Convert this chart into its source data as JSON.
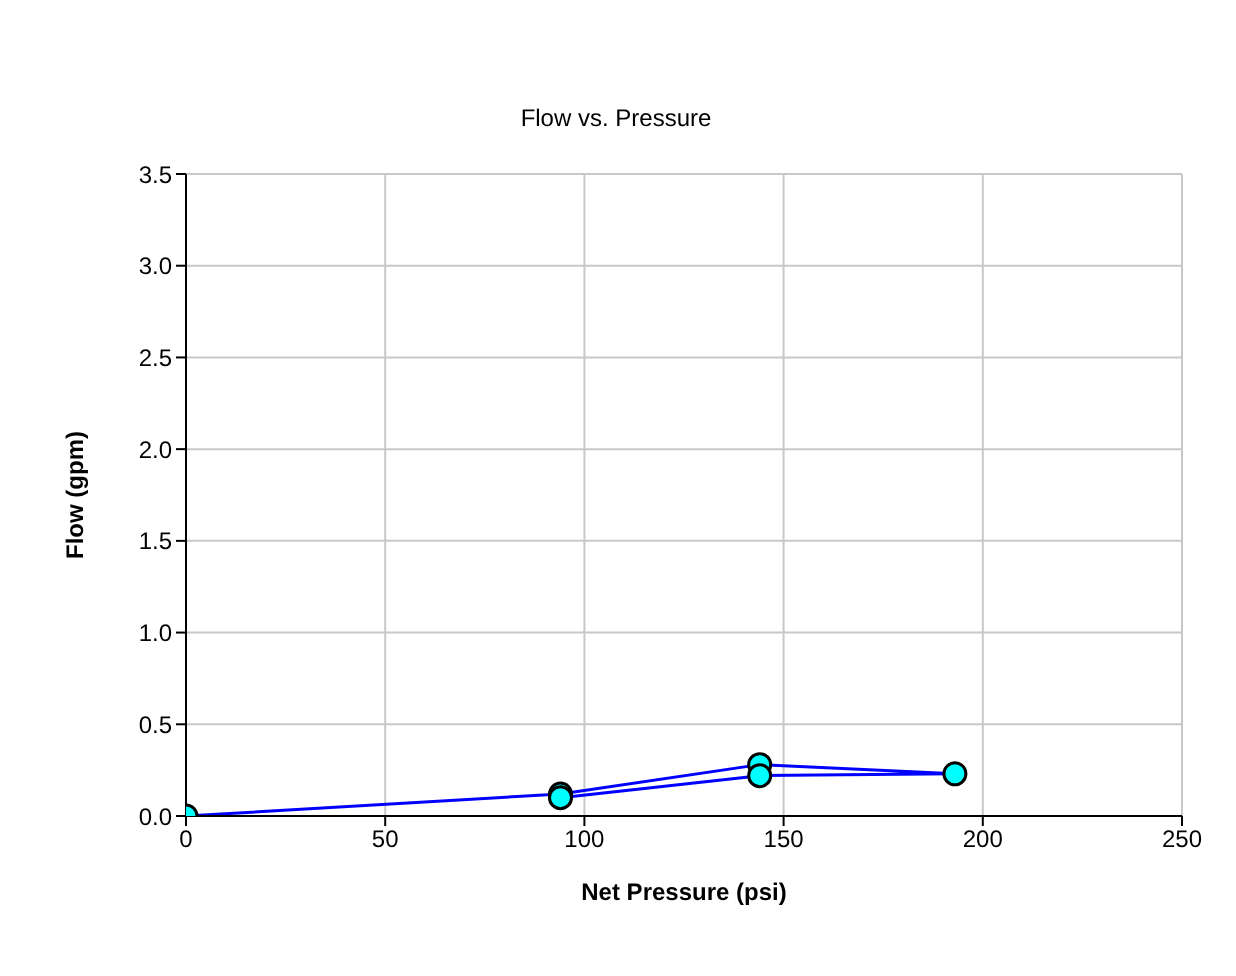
{
  "chart_data": {
    "type": "line",
    "title": "Flow vs. Pressure",
    "xlabel": "Net Pressure (psi)",
    "ylabel": "Flow (gpm)",
    "x": [
      0,
      94,
      144,
      193,
      144,
      94
    ],
    "series": [
      {
        "color": "#0000ff",
        "values": [
          0,
          0.12,
          0.28,
          0.23,
          0.22,
          0.1
        ]
      }
    ],
    "xlim": [
      0,
      250
    ],
    "xticks": [
      0,
      50,
      100,
      150,
      200,
      250
    ],
    "ylim": [
      0,
      3.5
    ],
    "yticks": [
      {
        "value": 0,
        "label": "0.0"
      },
      {
        "value": 0.5,
        "label": "0.5"
      },
      {
        "value": 1,
        "label": "1.0"
      },
      {
        "value": 1.5,
        "label": "1.5"
      },
      {
        "value": 2,
        "label": "2.0"
      },
      {
        "value": 2.5,
        "label": "2.5"
      },
      {
        "value": 3,
        "label": "3.0"
      },
      {
        "value": 3.5,
        "label": "3.5"
      }
    ],
    "grid": true,
    "marker": "circle",
    "line_style": "solid"
  }
}
